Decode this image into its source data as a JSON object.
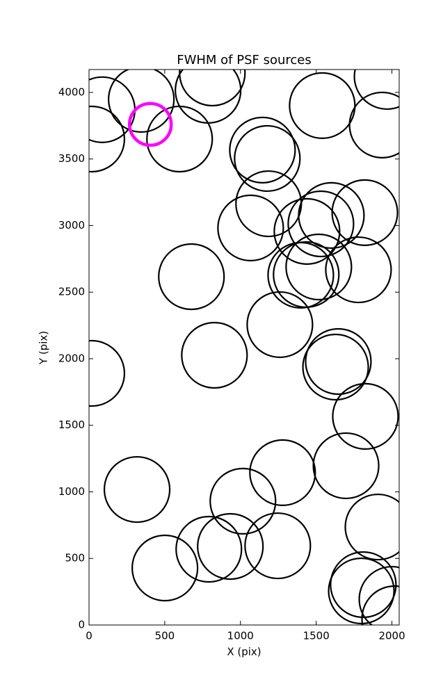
{
  "chart_data": {
    "type": "scatter",
    "title": "FWHM of PSF sources",
    "x_label": "X (pix)",
    "y_label": "Y (pix)",
    "xlim": [
      0,
      2048
    ],
    "ylim": [
      0,
      4172
    ],
    "xticks": [
      0,
      500,
      1000,
      1500,
      2000
    ],
    "yticks": [
      0,
      500,
      1000,
      1500,
      2000,
      2500,
      3000,
      3500,
      4000
    ],
    "series": [
      {
        "color": "#000000",
        "x": [
          87,
          18,
          345,
          598,
          786,
          814,
          1540,
          1936,
          1968,
          1145,
          1177,
          1186,
          1067,
          1600,
          1821,
          1531,
          1439,
          676,
          1398,
          1434,
          1517,
          1779,
          18,
          828,
          1260,
          1646,
          1628,
          1825,
          317,
          1697,
          1278,
          1016,
          1908,
          501,
          791,
          933,
          1246,
          1811,
          1798,
          2000,
          2018
        ],
        "y": [
          3870,
          3650,
          3948,
          3650,
          4016,
          4146,
          3901,
          3755,
          4120,
          3567,
          3504,
          3164,
          2982,
          3076,
          3097,
          3013,
          2956,
          2616,
          2627,
          2632,
          2689,
          2668,
          1890,
          2026,
          2256,
          1979,
          1937,
          1567,
          1018,
          1196,
          1144,
          930,
          736,
          428,
          569,
          590,
          595,
          303,
          256,
          193,
          47
        ]
      },
      {
        "color": "#ff00ff",
        "x": [
          405
        ],
        "y": [
          3760
        ]
      }
    ]
  }
}
